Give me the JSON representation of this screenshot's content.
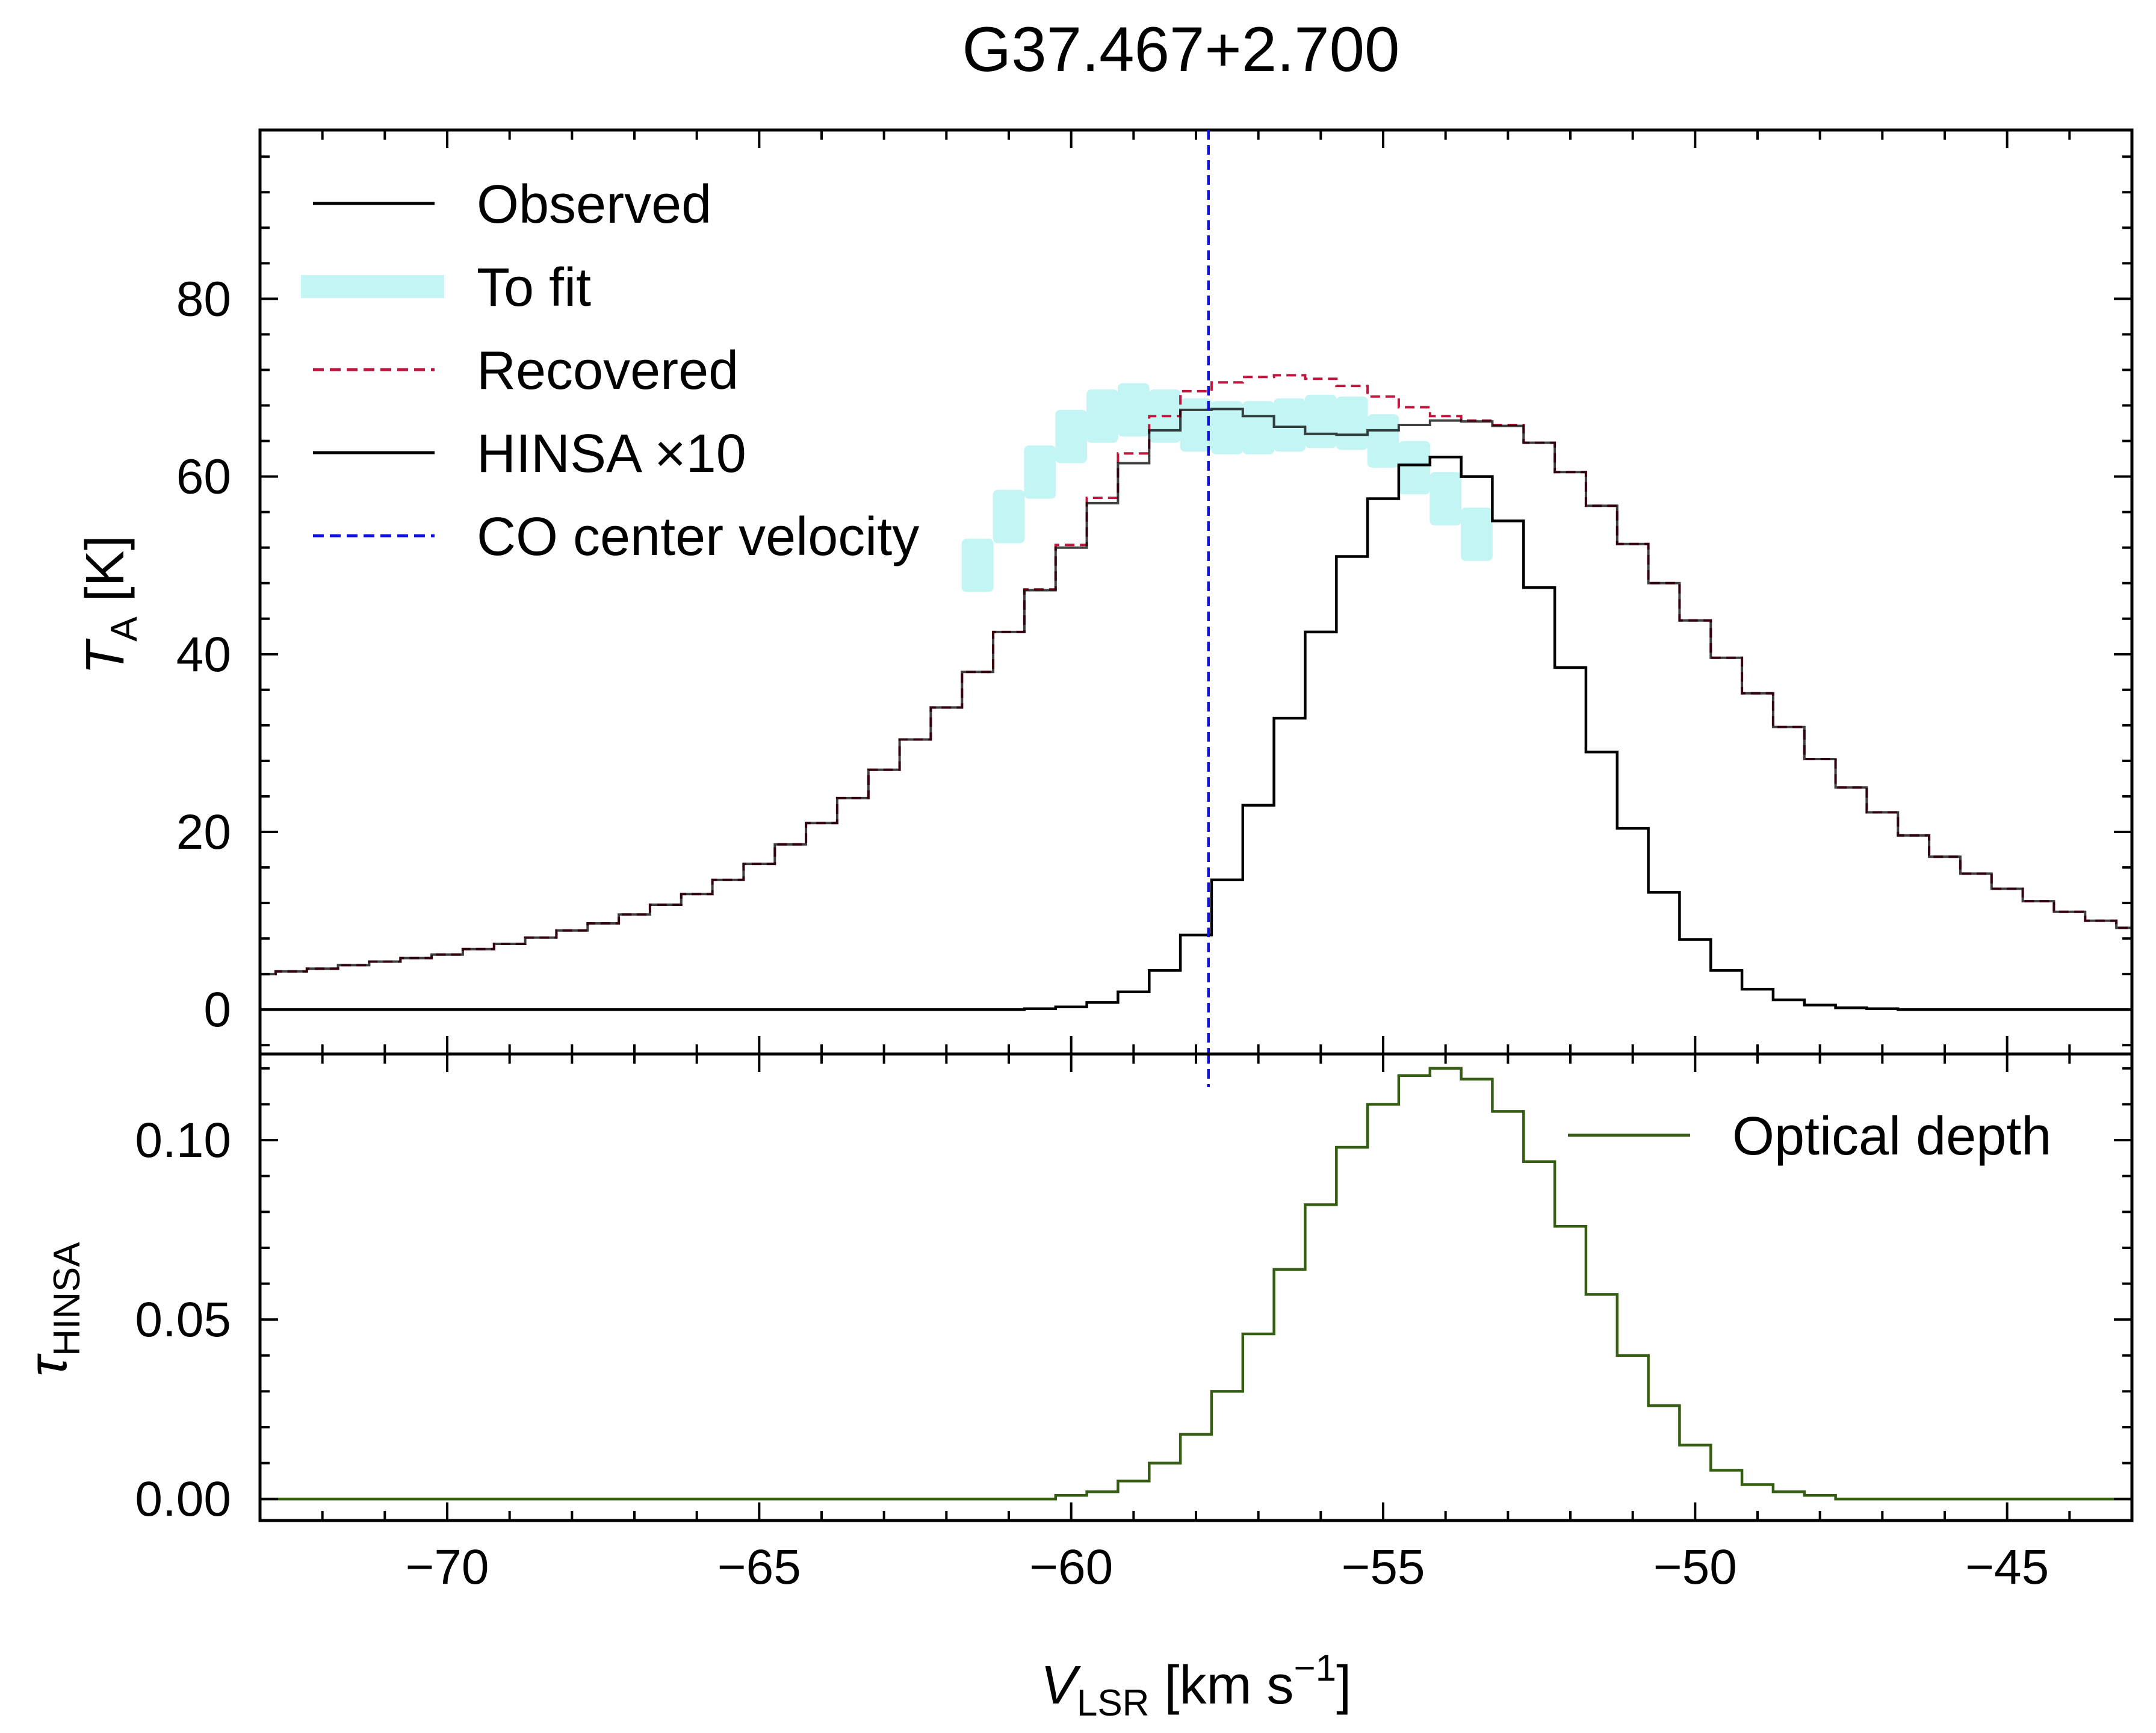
{
  "title": "G37.467+2.700",
  "colors": {
    "observed": "#000000",
    "to_fit": "#c4f5f5",
    "recovered": "#c0163d",
    "hinsa": "#000000",
    "co_center": "#1010e0",
    "optical_depth": "#355e12"
  },
  "chart_data": [
    {
      "type": "line",
      "panel": "top",
      "title": "G37.467+2.700",
      "xlabel": "",
      "ylabel": {
        "main": "T",
        "sub": "A",
        "unit": " [K]"
      },
      "xlim": [
        -73.0,
        -43.0
      ],
      "ylim": [
        -5,
        99
      ],
      "xticks": [
        -70,
        -65,
        -60,
        -55,
        -50,
        -45
      ],
      "yticks": [
        0,
        20,
        40,
        60,
        80
      ],
      "ytick_labels": [
        "0",
        "20",
        "40",
        "60",
        "80"
      ],
      "grid": false,
      "legend_position": "top-left",
      "legend": {
        "observed": "Observed",
        "to_fit": "To fit",
        "recovered": "Recovered",
        "hinsa": "HINSA ×10",
        "co_center": "CO center velocity"
      },
      "step": {
        "x_start": -73.0,
        "x_end": -43.0,
        "dx": 0.5
      },
      "series": [
        {
          "name": "Observed",
          "style": "step",
          "values": [
            4.0,
            4.3,
            4.6,
            5.0,
            5.4,
            5.8,
            6.2,
            6.8,
            7.4,
            8.1,
            8.9,
            9.7,
            10.7,
            11.8,
            13.0,
            14.6,
            16.4,
            18.6,
            21.0,
            23.8,
            27.0,
            30.4,
            34.0,
            38.0,
            42.5,
            47.2,
            52.0,
            57.0,
            61.5,
            65.2,
            67.5,
            67.6,
            66.8,
            65.6,
            64.8,
            64.7,
            65.2,
            65.8,
            66.3,
            66.2,
            65.7,
            63.8,
            60.5,
            56.7,
            52.4,
            48.0,
            43.8,
            39.6,
            35.6,
            31.8,
            28.2,
            25.0,
            22.2,
            19.6,
            17.2,
            15.3,
            13.6,
            12.2,
            11.0,
            10.0,
            9.2
          ]
        },
        {
          "name": "To fit",
          "style": "step-band",
          "values": [
            null,
            null,
            null,
            null,
            null,
            null,
            null,
            null,
            null,
            null,
            null,
            null,
            null,
            null,
            null,
            null,
            null,
            null,
            null,
            null,
            null,
            null,
            null,
            50.0,
            55.5,
            60.5,
            64.5,
            66.8,
            67.5,
            66.8,
            65.8,
            65.5,
            65.5,
            65.8,
            66.2,
            66.0,
            64.0,
            61.0,
            57.5,
            53.5,
            null,
            null,
            null,
            null,
            null,
            null,
            null,
            null,
            null,
            null,
            null,
            null,
            null,
            null,
            null,
            null,
            null,
            null,
            null,
            null,
            null
          ]
        },
        {
          "name": "Recovered",
          "style": "step-dashed",
          "values": [
            4.0,
            4.3,
            4.6,
            5.0,
            5.4,
            5.8,
            6.2,
            6.8,
            7.4,
            8.1,
            8.9,
            9.7,
            10.7,
            11.8,
            13.0,
            14.6,
            16.4,
            18.6,
            21.0,
            23.8,
            27.0,
            30.4,
            34.0,
            38.0,
            42.5,
            47.3,
            52.3,
            57.6,
            62.6,
            66.8,
            69.6,
            70.6,
            71.2,
            71.4,
            71.0,
            70.2,
            69.0,
            67.8,
            66.8,
            66.3,
            65.8,
            63.8,
            60.5,
            56.7,
            52.4,
            48.0,
            43.8,
            39.6,
            35.6,
            31.8,
            28.2,
            25.0,
            22.2,
            19.6,
            17.2,
            15.3,
            13.6,
            12.2,
            11.0,
            10.0,
            9.2
          ]
        },
        {
          "name": "HINSA ×10",
          "style": "step",
          "values": [
            0,
            0,
            0,
            0,
            0,
            0,
            0,
            0,
            0,
            0,
            0,
            0,
            0,
            0,
            0,
            0,
            0,
            0,
            0,
            0,
            0,
            0,
            0,
            0,
            0,
            0.1,
            0.3,
            0.8,
            2.0,
            4.4,
            8.4,
            14.6,
            23.0,
            32.8,
            42.5,
            51.0,
            57.5,
            61.3,
            62.2,
            60.0,
            55.0,
            47.5,
            38.5,
            29.0,
            20.4,
            13.2,
            7.9,
            4.4,
            2.3,
            1.1,
            0.5,
            0.2,
            0.1,
            0,
            0,
            0,
            0,
            0,
            0,
            0,
            0
          ]
        },
        {
          "name": "CO center velocity",
          "style": "vline-dashed",
          "x": -57.8
        }
      ]
    },
    {
      "type": "line",
      "panel": "bottom",
      "xlabel": {
        "main": "V",
        "sub": "LSR",
        "unit": " [km s",
        "sup": "−1",
        "close": "]"
      },
      "ylabel": {
        "main": "τ",
        "sub": "HINSA"
      },
      "xlim": [
        -73.0,
        -43.0
      ],
      "ylim": [
        -0.006,
        0.124
      ],
      "xticks": [
        -70,
        -65,
        -60,
        -55,
        -50,
        -45
      ],
      "xtick_labels": [
        "−70",
        "−65",
        "−60",
        "−55",
        "−50",
        "−45"
      ],
      "yticks": [
        0.0,
        0.05,
        0.1
      ],
      "ytick_labels": [
        "0.00",
        "0.05",
        "0.10"
      ],
      "grid": false,
      "legend_position": "top-right",
      "legend": {
        "optical_depth": "Optical depth"
      },
      "step": {
        "x_start": -73.0,
        "x_end": -43.0,
        "dx": 0.5
      },
      "series": [
        {
          "name": "Optical depth",
          "style": "step",
          "values": [
            0,
            0,
            0,
            0,
            0,
            0,
            0,
            0,
            0,
            0,
            0,
            0,
            0,
            0,
            0,
            0,
            0,
            0,
            0,
            0,
            0,
            0,
            0,
            0,
            0,
            0,
            0.001,
            0.002,
            0.005,
            0.01,
            0.018,
            0.03,
            0.046,
            0.064,
            0.082,
            0.098,
            0.11,
            0.118,
            0.12,
            0.117,
            0.108,
            0.094,
            0.076,
            0.057,
            0.04,
            0.026,
            0.015,
            0.008,
            0.004,
            0.002,
            0.001,
            0,
            0,
            0,
            0,
            0,
            0,
            0,
            0,
            0,
            0
          ]
        }
      ]
    }
  ]
}
